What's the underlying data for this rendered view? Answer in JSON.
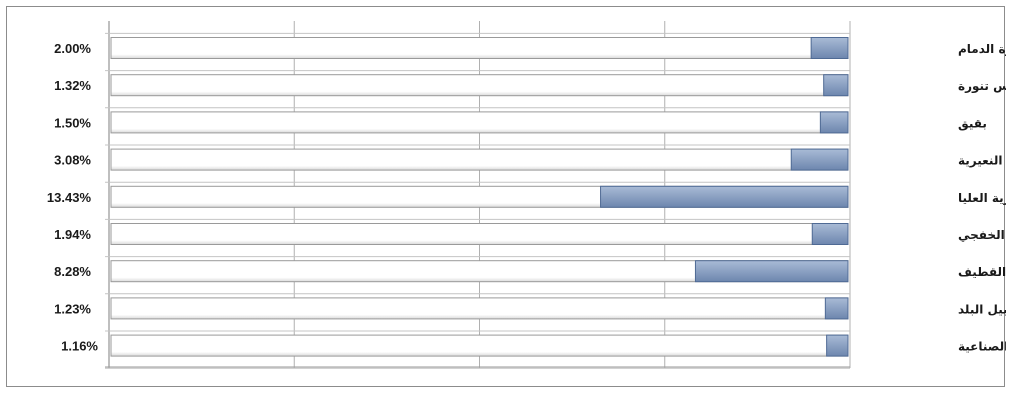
{
  "chart_data": {
    "type": "bar",
    "orientation": "horizontal",
    "direction": "right-to-left",
    "title": "",
    "xlabel": "",
    "ylabel": "",
    "xlim": [
      0,
      0.4
    ],
    "grid": true,
    "legend": "none",
    "categories": [
      "حاضرة الدمام",
      "رأس تنورة",
      "بقيق",
      "النعيرية",
      "قرية العليا",
      "الخفجي",
      "القطيف",
      "الجبيل البلد",
      "الجبيل الصناعية"
    ],
    "values": [
      0.02,
      0.0132,
      0.015,
      0.0308,
      0.1343,
      0.0194,
      0.0828,
      0.0123,
      0.0116
    ],
    "value_labels": [
      "2.00%",
      "1.32%",
      "1.50%",
      "3.08%",
      "13.43%",
      "1.94%",
      "8.28%",
      "1.23%",
      "1.16%"
    ],
    "colors": {
      "bar_fill_top": "#a9bbd6",
      "bar_fill_bottom": "#6d86ae",
      "bar_stroke": "#4f6a94",
      "track_fill": "#ffffff",
      "track_stroke": "#9a9a9a",
      "grid": "#b0b0b0"
    }
  }
}
